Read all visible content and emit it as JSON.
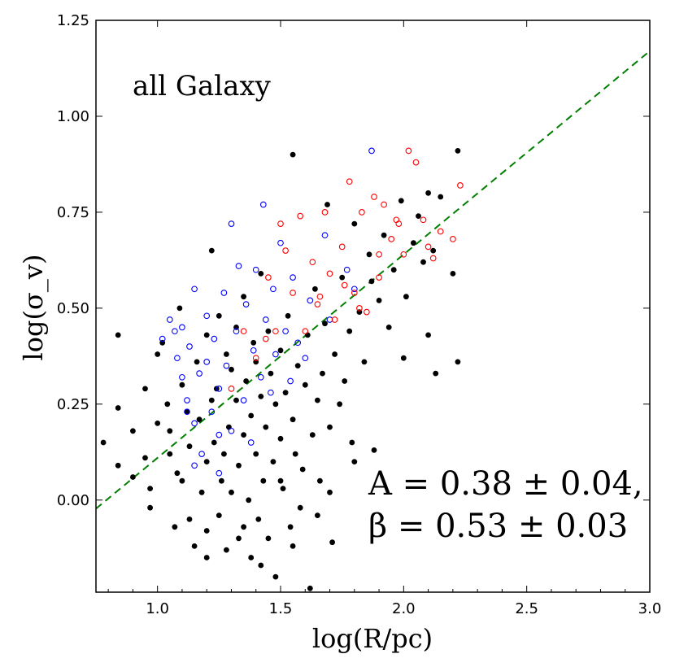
{
  "chart_data": {
    "type": "scatter",
    "title": "all Galaxy",
    "xlabel": "log(R/pc)",
    "ylabel": "log(σ_v)",
    "xlim": [
      0.75,
      3.0
    ],
    "ylim": [
      -0.24,
      1.25
    ],
    "xticks": [
      1.0,
      1.5,
      2.0,
      2.5,
      3.0
    ],
    "xtick_labels": [
      "1.0",
      "1.5",
      "2.0",
      "2.5",
      "3.0"
    ],
    "yticks": [
      0.0,
      0.25,
      0.5,
      0.75,
      1.0,
      1.25
    ],
    "ytick_labels": [
      "0.00",
      "0.25",
      "0.50",
      "0.75",
      "1.00",
      "1.25"
    ],
    "fit": {
      "A": 0.38,
      "A_err": 0.04,
      "beta": 0.53,
      "beta_err": 0.03,
      "intercept": -0.42,
      "color": "#007f00",
      "style": "dashed"
    },
    "annotation": {
      "line1": "A = 0.38 ± 0.04,",
      "line2": "β = 0.53 ± 0.03"
    },
    "series": [
      {
        "name": "black filled",
        "color": "#000000",
        "marker": "filled",
        "points": [
          [
            0.84,
            0.43
          ],
          [
            0.84,
            0.24
          ],
          [
            0.78,
            0.15
          ],
          [
            0.84,
            0.09
          ],
          [
            0.9,
            0.06
          ],
          [
            0.9,
            0.18
          ],
          [
            0.95,
            0.29
          ],
          [
            0.95,
            0.11
          ],
          [
            0.97,
            0.03
          ],
          [
            0.97,
            -0.02
          ],
          [
            1.0,
            0.2
          ],
          [
            1.0,
            0.38
          ],
          [
            1.02,
            0.41
          ],
          [
            1.04,
            0.25
          ],
          [
            1.05,
            0.18
          ],
          [
            1.05,
            0.12
          ],
          [
            1.07,
            -0.07
          ],
          [
            1.08,
            0.07
          ],
          [
            1.09,
            0.5
          ],
          [
            1.1,
            0.05
          ],
          [
            1.1,
            0.3
          ],
          [
            1.12,
            0.23
          ],
          [
            1.13,
            0.14
          ],
          [
            1.13,
            -0.05
          ],
          [
            1.15,
            -0.12
          ],
          [
            1.16,
            0.36
          ],
          [
            1.17,
            0.21
          ],
          [
            1.18,
            0.02
          ],
          [
            1.2,
            0.1
          ],
          [
            1.2,
            0.43
          ],
          [
            1.2,
            -0.08
          ],
          [
            1.22,
            0.65
          ],
          [
            1.22,
            0.26
          ],
          [
            1.23,
            0.15
          ],
          [
            1.24,
            0.29
          ],
          [
            1.25,
            -0.04
          ],
          [
            1.25,
            0.48
          ],
          [
            1.26,
            0.05
          ],
          [
            1.27,
            0.12
          ],
          [
            1.28,
            0.38
          ],
          [
            1.28,
            -0.13
          ],
          [
            1.29,
            0.19
          ],
          [
            1.3,
            0.34
          ],
          [
            1.3,
            0.02
          ],
          [
            1.32,
            0.45
          ],
          [
            1.32,
            0.26
          ],
          [
            1.33,
            0.09
          ],
          [
            1.33,
            -0.1
          ],
          [
            1.35,
            0.17
          ],
          [
            1.35,
            0.53
          ],
          [
            1.36,
            0.31
          ],
          [
            1.37,
            0.0
          ],
          [
            1.38,
            -0.15
          ],
          [
            1.38,
            0.22
          ],
          [
            1.39,
            0.41
          ],
          [
            1.4,
            0.12
          ],
          [
            1.4,
            0.36
          ],
          [
            1.41,
            -0.05
          ],
          [
            1.42,
            0.27
          ],
          [
            1.42,
            0.59
          ],
          [
            1.43,
            0.05
          ],
          [
            1.44,
            0.19
          ],
          [
            1.45,
            0.44
          ],
          [
            1.45,
            -0.1
          ],
          [
            1.46,
            0.33
          ],
          [
            1.47,
            0.1
          ],
          [
            1.48,
            0.25
          ],
          [
            1.48,
            -0.2
          ],
          [
            1.5,
            0.16
          ],
          [
            1.5,
            0.39
          ],
          [
            1.51,
            0.03
          ],
          [
            1.52,
            0.28
          ],
          [
            1.53,
            0.48
          ],
          [
            1.54,
            -0.07
          ],
          [
            1.55,
            0.9
          ],
          [
            1.55,
            0.21
          ],
          [
            1.56,
            0.12
          ],
          [
            1.57,
            0.35
          ],
          [
            1.58,
            -0.02
          ],
          [
            1.59,
            0.08
          ],
          [
            1.6,
            0.3
          ],
          [
            1.61,
            0.43
          ],
          [
            1.62,
            -0.23
          ],
          [
            1.63,
            0.17
          ],
          [
            1.64,
            0.55
          ],
          [
            1.65,
            0.26
          ],
          [
            1.66,
            0.05
          ],
          [
            1.67,
            0.33
          ],
          [
            1.68,
            0.46
          ],
          [
            1.69,
            0.77
          ],
          [
            1.7,
            0.19
          ],
          [
            1.71,
            -0.11
          ],
          [
            1.72,
            0.38
          ],
          [
            1.74,
            0.25
          ],
          [
            1.75,
            0.58
          ],
          [
            1.76,
            0.31
          ],
          [
            1.78,
            0.44
          ],
          [
            1.79,
            0.15
          ],
          [
            1.8,
            0.72
          ],
          [
            1.82,
            0.49
          ],
          [
            1.84,
            0.36
          ],
          [
            1.86,
            0.64
          ],
          [
            1.87,
            0.57
          ],
          [
            1.88,
            0.13
          ],
          [
            1.9,
            0.52
          ],
          [
            1.92,
            0.69
          ],
          [
            1.94,
            0.45
          ],
          [
            1.96,
            0.6
          ],
          [
            1.99,
            0.78
          ],
          [
            2.01,
            0.53
          ],
          [
            2.04,
            0.67
          ],
          [
            2.06,
            0.74
          ],
          [
            2.08,
            0.62
          ],
          [
            2.1,
            0.8
          ],
          [
            2.12,
            0.65
          ],
          [
            2.15,
            0.79
          ],
          [
            2.2,
            0.59
          ],
          [
            2.22,
            0.36
          ],
          [
            2.22,
            0.91
          ],
          [
            2.1,
            0.43
          ],
          [
            2.13,
            0.33
          ],
          [
            2.0,
            0.37
          ],
          [
            1.8,
            0.1
          ],
          [
            1.65,
            -0.04
          ],
          [
            1.55,
            -0.12
          ],
          [
            1.42,
            -0.17
          ],
          [
            1.2,
            -0.15
          ],
          [
            1.35,
            -0.07
          ],
          [
            1.7,
            0.02
          ],
          [
            1.5,
            0.05
          ]
        ]
      },
      {
        "name": "blue open",
        "color": "#0000ff",
        "marker": "open",
        "points": [
          [
            1.02,
            0.42
          ],
          [
            1.05,
            0.47
          ],
          [
            1.07,
            0.44
          ],
          [
            1.08,
            0.37
          ],
          [
            1.1,
            0.32
          ],
          [
            1.1,
            0.45
          ],
          [
            1.12,
            0.26
          ],
          [
            1.13,
            0.4
          ],
          [
            1.15,
            0.55
          ],
          [
            1.15,
            0.2
          ],
          [
            1.17,
            0.33
          ],
          [
            1.18,
            0.12
          ],
          [
            1.2,
            0.36
          ],
          [
            1.2,
            0.48
          ],
          [
            1.22,
            0.23
          ],
          [
            1.23,
            0.42
          ],
          [
            1.25,
            0.29
          ],
          [
            1.25,
            0.07
          ],
          [
            1.27,
            0.54
          ],
          [
            1.28,
            0.35
          ],
          [
            1.3,
            0.72
          ],
          [
            1.3,
            0.18
          ],
          [
            1.32,
            0.44
          ],
          [
            1.33,
            0.61
          ],
          [
            1.35,
            0.26
          ],
          [
            1.36,
            0.51
          ],
          [
            1.38,
            0.15
          ],
          [
            1.39,
            0.39
          ],
          [
            1.4,
            0.6
          ],
          [
            1.42,
            0.32
          ],
          [
            1.43,
            0.77
          ],
          [
            1.44,
            0.47
          ],
          [
            1.46,
            0.28
          ],
          [
            1.47,
            0.55
          ],
          [
            1.48,
            0.38
          ],
          [
            1.5,
            0.67
          ],
          [
            1.52,
            0.44
          ],
          [
            1.54,
            0.31
          ],
          [
            1.55,
            0.58
          ],
          [
            1.57,
            0.41
          ],
          [
            1.6,
            0.37
          ],
          [
            1.62,
            0.52
          ],
          [
            1.68,
            0.69
          ],
          [
            1.7,
            0.47
          ],
          [
            1.77,
            0.6
          ],
          [
            1.8,
            0.55
          ],
          [
            1.87,
            0.91
          ],
          [
            1.15,
            0.09
          ],
          [
            1.12,
            0.23
          ],
          [
            1.25,
            0.17
          ]
        ]
      },
      {
        "name": "red open",
        "color": "#ff0000",
        "marker": "open",
        "points": [
          [
            1.3,
            0.29
          ],
          [
            1.35,
            0.44
          ],
          [
            1.4,
            0.37
          ],
          [
            1.45,
            0.58
          ],
          [
            1.48,
            0.44
          ],
          [
            1.5,
            0.72
          ],
          [
            1.52,
            0.65
          ],
          [
            1.55,
            0.54
          ],
          [
            1.58,
            0.74
          ],
          [
            1.6,
            0.44
          ],
          [
            1.63,
            0.62
          ],
          [
            1.65,
            0.51
          ],
          [
            1.68,
            0.75
          ],
          [
            1.7,
            0.59
          ],
          [
            1.72,
            0.47
          ],
          [
            1.75,
            0.66
          ],
          [
            1.78,
            0.83
          ],
          [
            1.8,
            0.54
          ],
          [
            1.83,
            0.75
          ],
          [
            1.85,
            0.49
          ],
          [
            1.88,
            0.79
          ],
          [
            1.9,
            0.64
          ],
          [
            1.92,
            0.77
          ],
          [
            1.95,
            0.68
          ],
          [
            1.98,
            0.72
          ],
          [
            2.0,
            0.64
          ],
          [
            2.02,
            0.91
          ],
          [
            2.05,
            0.88
          ],
          [
            2.08,
            0.73
          ],
          [
            2.1,
            0.66
          ],
          [
            2.12,
            0.63
          ],
          [
            2.15,
            0.7
          ],
          [
            2.2,
            0.68
          ],
          [
            2.23,
            0.82
          ],
          [
            1.97,
            0.73
          ],
          [
            1.9,
            0.58
          ],
          [
            1.82,
            0.5
          ],
          [
            1.76,
            0.56
          ],
          [
            1.66,
            0.53
          ],
          [
            1.44,
            0.42
          ]
        ]
      }
    ]
  }
}
